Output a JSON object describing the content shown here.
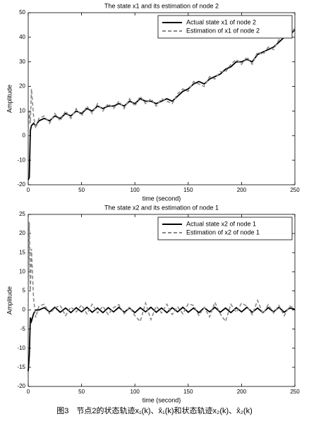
{
  "chart_data": [
    {
      "type": "line",
      "title": "The state x1 and its estimation of node 2",
      "xlabel": "time (second)",
      "ylabel": "Amplitude",
      "xlim": [
        0,
        250
      ],
      "xticks": [
        0,
        50,
        100,
        150,
        200,
        250
      ],
      "ylim": [
        -20,
        50
      ],
      "yticks": [
        -20,
        -10,
        0,
        10,
        20,
        30,
        40,
        50
      ],
      "grid": false,
      "legend": "upper right",
      "x": [
        0,
        1,
        2,
        3,
        5,
        7,
        10,
        15,
        20,
        25,
        30,
        35,
        40,
        45,
        50,
        55,
        60,
        65,
        70,
        75,
        80,
        85,
        90,
        95,
        100,
        105,
        110,
        115,
        120,
        125,
        130,
        135,
        140,
        145,
        150,
        155,
        160,
        165,
        170,
        175,
        180,
        185,
        190,
        195,
        200,
        205,
        210,
        215,
        220,
        225,
        230,
        235,
        240,
        245,
        250
      ],
      "series": [
        {
          "name": "Actual state x1 of node 2",
          "color": "#000000",
          "line_style": "solid",
          "values": [
            -18,
            -17,
            2,
            4,
            5,
            4,
            6,
            7,
            6,
            8,
            7,
            9,
            8,
            10,
            9,
            11,
            10,
            12,
            11,
            12,
            12,
            13,
            12,
            14,
            13,
            15,
            14,
            14,
            13,
            14,
            15,
            14,
            16,
            18,
            19,
            21,
            22,
            21,
            23,
            24,
            25,
            27,
            28,
            30,
            30,
            31,
            30,
            33,
            34,
            35,
            36,
            38,
            40,
            41,
            43
          ]
        },
        {
          "name": "Estimation of x1 of node 2",
          "color": "#888888",
          "line_style": "dashed",
          "values": [
            0,
            10,
            5,
            19,
            8,
            3,
            7,
            8,
            5,
            9,
            6,
            10,
            7,
            11,
            8,
            12,
            9,
            13,
            10,
            13,
            11,
            14,
            11,
            15,
            12,
            16,
            13,
            15,
            12,
            15,
            14,
            13,
            17,
            19,
            18,
            22,
            21,
            20,
            24,
            23,
            26,
            26,
            29,
            31,
            29,
            32,
            29,
            34,
            33,
            36,
            35,
            39,
            41,
            40,
            44
          ]
        }
      ]
    },
    {
      "type": "line",
      "title": "The state x2 and its estimation of node 1",
      "xlabel": "time (second)",
      "ylabel": "Amplitude",
      "xlim": [
        0,
        250
      ],
      "xticks": [
        0,
        50,
        100,
        150,
        200,
        250
      ],
      "ylim": [
        -20,
        25
      ],
      "yticks": [
        -20,
        -15,
        -10,
        -5,
        0,
        5,
        10,
        15,
        20,
        25
      ],
      "grid": false,
      "legend": "upper right",
      "x": [
        0,
        1,
        2,
        3,
        5,
        7,
        10,
        15,
        20,
        25,
        30,
        35,
        40,
        45,
        50,
        55,
        60,
        65,
        70,
        75,
        80,
        85,
        90,
        95,
        100,
        105,
        110,
        115,
        120,
        125,
        130,
        135,
        140,
        145,
        150,
        155,
        160,
        165,
        170,
        175,
        180,
        185,
        190,
        195,
        200,
        205,
        210,
        215,
        220,
        225,
        230,
        235,
        240,
        245,
        250
      ],
      "series": [
        {
          "name": "Actual state x2 of node 1",
          "color": "#000000",
          "line_style": "solid",
          "values": [
            -16,
            -12,
            -2,
            -3,
            -1,
            0,
            0,
            0.6,
            -0.5,
            0.7,
            -0.6,
            0.5,
            -0.7,
            0.6,
            -0.5,
            0.7,
            -0.6,
            0.5,
            -0.7,
            0.6,
            -0.5,
            0.7,
            -0.6,
            0.5,
            -0.7,
            0.6,
            -0.5,
            0.7,
            -0.6,
            0.5,
            -0.7,
            0.6,
            -0.5,
            0.7,
            -0.6,
            0.5,
            -0.7,
            0.6,
            -0.5,
            0.7,
            -0.6,
            0.5,
            -0.7,
            0.6,
            -0.5,
            0.7,
            -0.6,
            0.5,
            -0.7,
            0.6,
            -0.5,
            0.7,
            -0.6,
            0.5,
            0.2
          ]
        },
        {
          "name": "Estimation of x2 of node 1",
          "color": "#888888",
          "line_style": "dashed",
          "values": [
            0,
            23,
            5,
            16,
            3,
            -2,
            1,
            1.5,
            -1,
            0.5,
            1.2,
            -1.5,
            0.8,
            -0.5,
            1.3,
            -1,
            1.5,
            -0.8,
            1,
            -1.2,
            0.6,
            1.4,
            -1,
            0.8,
            -1.5,
            -3,
            1.8,
            -2.5,
            1,
            -0.8,
            1.5,
            -1.2,
            0.9,
            -1,
            1.6,
            1.2,
            -1.4,
            0.7,
            -1.8,
            2,
            -1,
            -3,
            1.5,
            -0.6,
            1.8,
            1,
            -1.2,
            2.5,
            -1,
            1.4,
            -0.8,
            1.2,
            -1.5,
            1,
            0.5
          ]
        }
      ]
    }
  ],
  "caption": "图3　节点2的状态轨迹x₁(k)、x̂₁(k)和状态轨迹x₂(k)、x̂₂(k)"
}
